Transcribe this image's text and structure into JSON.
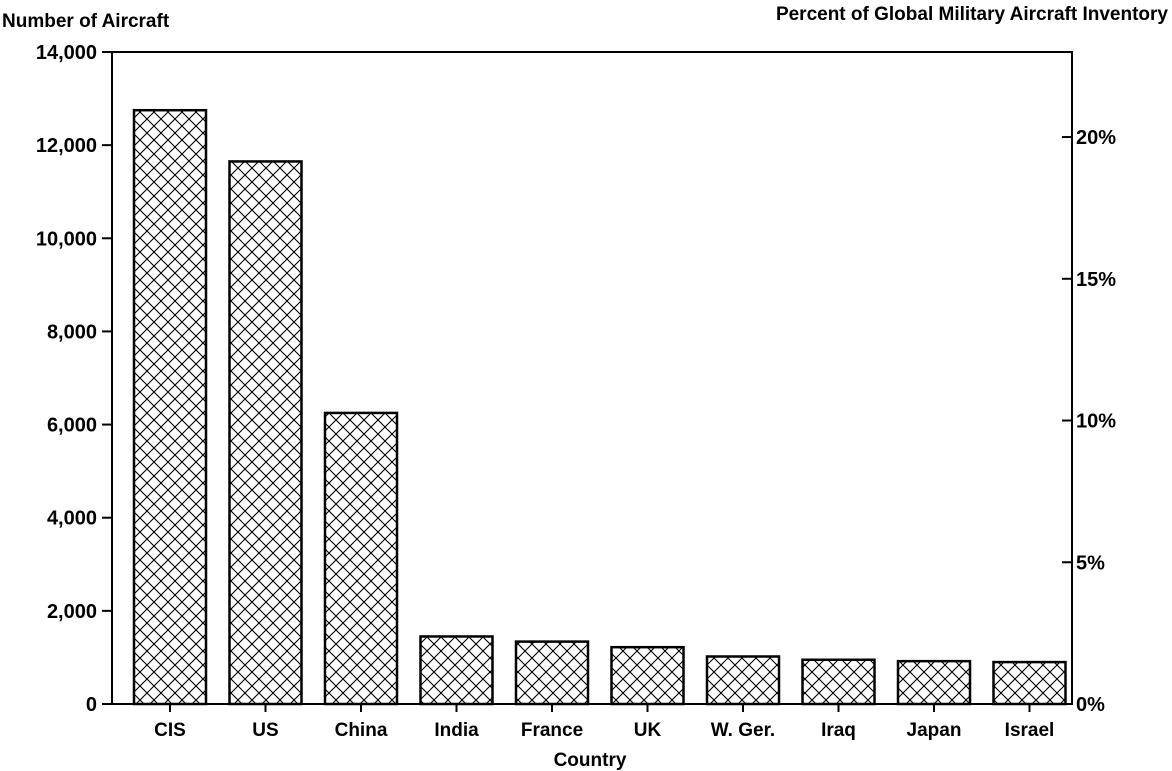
{
  "chart_data": {
    "type": "bar",
    "left_axis_title": "Number of Aircraft",
    "right_axis_title": "Percent of Global Military Aircraft Inventory",
    "xlabel": "Country",
    "categories": [
      "CIS",
      "US",
      "China",
      "India",
      "France",
      "UK",
      "W. Ger.",
      "Iraq",
      "Japan",
      "Israel"
    ],
    "values": [
      12750,
      11650,
      6250,
      1450,
      1340,
      1220,
      1020,
      950,
      920,
      900
    ],
    "ylim": [
      0,
      14000
    ],
    "left_ticks": [
      {
        "value": 0,
        "label": "0"
      },
      {
        "value": 2000,
        "label": "2,000"
      },
      {
        "value": 4000,
        "label": "4,000"
      },
      {
        "value": 6000,
        "label": "6,000"
      },
      {
        "value": 8000,
        "label": "8,000"
      },
      {
        "value": 10000,
        "label": "10,000"
      },
      {
        "value": 12000,
        "label": "12,000"
      },
      {
        "value": 14000,
        "label": "14,000"
      }
    ],
    "right_ylim": [
      0,
      23
    ],
    "right_ticks": [
      {
        "value": 0,
        "label": "0%"
      },
      {
        "value": 5,
        "label": "5%"
      },
      {
        "value": 10,
        "label": "10%"
      },
      {
        "value": 15,
        "label": "15%"
      },
      {
        "value": 20,
        "label": "20%"
      }
    ],
    "bar_fill": "crosshatch",
    "grid": false,
    "legend": "none"
  }
}
